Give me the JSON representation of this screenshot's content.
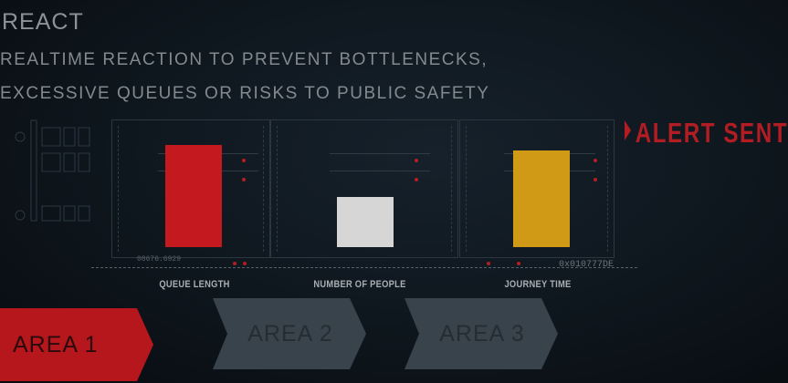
{
  "header": {
    "title": "REACT",
    "subtitle_line1": "REALTIME REACTION TO PREVENT BOTTLENECKS,",
    "subtitle_line2": "EXCESSIVE QUEUES OR RISKS TO PUBLIC SAFETY"
  },
  "alert": {
    "label": "ALERT SENT",
    "color": "#b11d23"
  },
  "metrics": [
    {
      "label": "QUEUE LENGTH",
      "level": 0.85,
      "color": "#c41a1f"
    },
    {
      "label": "NUMBER OF PEOPLE",
      "level": 0.42,
      "color": "#d6d6d6"
    },
    {
      "label": "JOURNEY TIME",
      "level": 0.8,
      "color": "#d19a16"
    }
  ],
  "readouts": {
    "left": "08676.6929",
    "right": "0x010777DE"
  },
  "areas": [
    {
      "label": "AREA 1",
      "state": "active",
      "color": "#b5171c"
    },
    {
      "label": "AREA 2",
      "state": "inactive",
      "color": "#3a444c"
    },
    {
      "label": "AREA 3",
      "state": "inactive",
      "color": "#3a444c"
    }
  ]
}
